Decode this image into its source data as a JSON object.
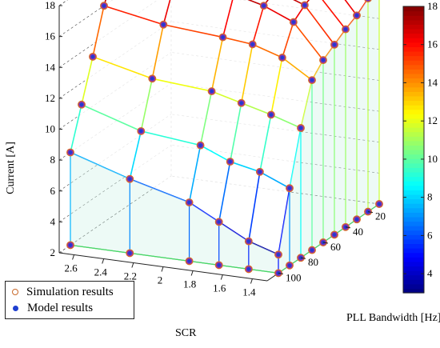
{
  "chart_data": {
    "type": "surface3d",
    "x_axis_label": "PLL Bandwidth [Hz]",
    "y_axis_label": "SCR",
    "z_axis_label": "Current [A]",
    "x_ticks": [
      20,
      40,
      60,
      80,
      100
    ],
    "y_ticks": [
      2.6,
      2.4,
      2.2,
      2,
      1.8,
      1.6,
      1.4
    ],
    "z_ticks": [
      2,
      4,
      6,
      8,
      10,
      12,
      14,
      16,
      18
    ],
    "pll_bandwidth": [
      10,
      20,
      30,
      40,
      50,
      60,
      70,
      80,
      90,
      100
    ],
    "scr": [
      2.7,
      2.3,
      1.9,
      1.7,
      1.5,
      1.3
    ],
    "current": [
      [
        18.5,
        18.5,
        18.5,
        18.5,
        18.2,
        16.2
      ],
      [
        18.5,
        18.5,
        18.5,
        18.5,
        18.0,
        15.8
      ],
      [
        18.5,
        18.5,
        18.5,
        18.2,
        17.5,
        15.2
      ],
      [
        18.5,
        18.5,
        18.3,
        17.8,
        17.0,
        14.8
      ],
      [
        18.4,
        18.3,
        18.0,
        17.3,
        16.6,
        14.3
      ],
      [
        18.0,
        17.5,
        17.3,
        16.8,
        16.0,
        13.8
      ],
      [
        16.0,
        15.3,
        15.0,
        14.8,
        14.2,
        13.0
      ],
      [
        13.2,
        12.3,
        12.0,
        11.5,
        11.0,
        10.4
      ],
      [
        10.6,
        9.4,
        9.0,
        8.2,
        7.8,
        7.0
      ],
      [
        8.0,
        6.8,
        5.8,
        4.8,
        3.8,
        3.2
      ]
    ],
    "colorbar": {
      "min": 3,
      "max": 18,
      "ticks": [
        4,
        6,
        8,
        10,
        12,
        14,
        16,
        18
      ],
      "colormap": "jet"
    },
    "legend": {
      "placement": "bottom-left",
      "items": [
        {
          "label": "Simulation results",
          "marker": "open-circle",
          "color": "#c8692a"
        },
        {
          "label": "Model results",
          "marker": "filled-dot",
          "color": "#1f3fd0"
        }
      ]
    },
    "grid": true
  }
}
